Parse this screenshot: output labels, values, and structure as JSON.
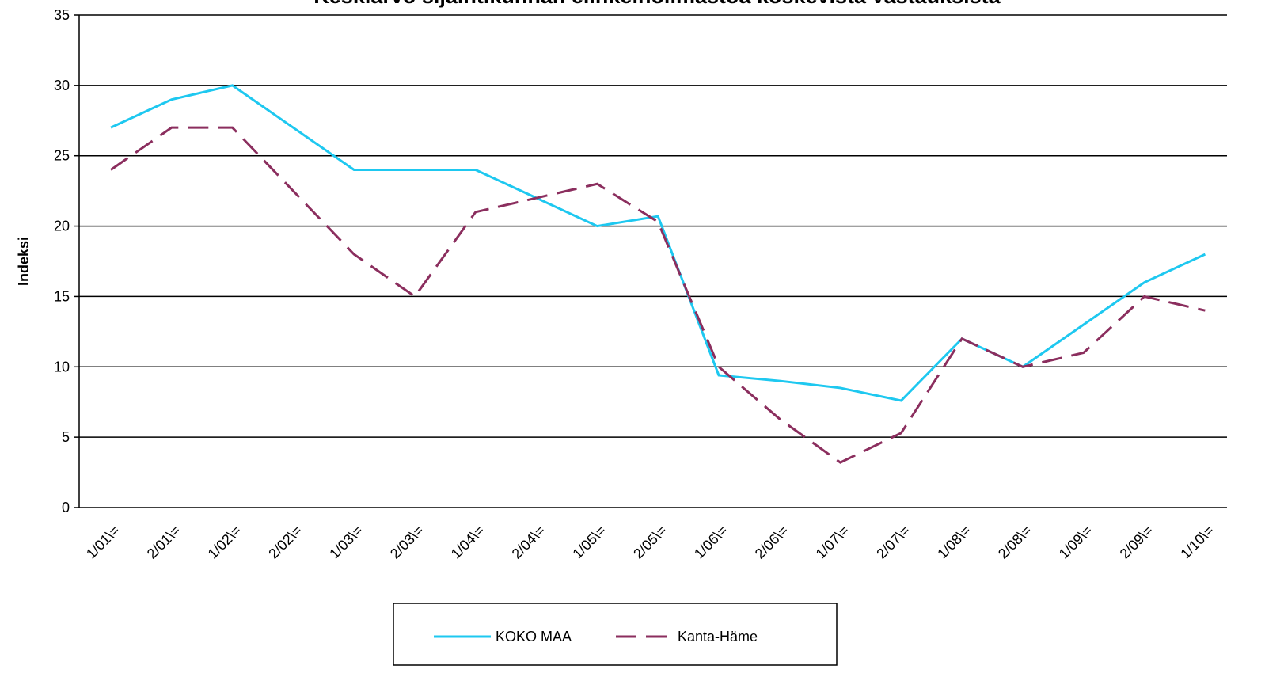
{
  "chart_data": {
    "type": "line",
    "title": "Keskiarvo sijaintikunnan elinkeinoilmastoa koskevista vastauksista",
    "ylabel": "Indeksi",
    "categories": [
      "1/01\\=",
      "2/01\\=",
      "1/02\\=",
      "2/02\\=",
      "1/03\\=",
      "2/03\\=",
      "1/04\\=",
      "2/04\\=",
      "1/05\\=",
      "2/05\\=",
      "1/06\\=",
      "2/06\\=",
      "1/07\\=",
      "2/07\\=",
      "1/08\\=",
      "2/08\\=",
      "1/09\\=",
      "2/09\\=",
      "1/10\\="
    ],
    "series": [
      {
        "name": "KOKO MAA",
        "color": "#1ec8f0",
        "dash": false,
        "values": [
          27,
          29,
          30,
          27,
          24,
          24,
          24,
          22,
          20,
          20.7,
          9.4,
          9,
          8.5,
          7.6,
          12,
          10,
          13,
          16,
          18
        ]
      },
      {
        "name": "Kanta-Häme",
        "color": "#8b2e5e",
        "dash": true,
        "values": [
          24,
          27,
          27,
          22.5,
          18,
          15,
          21,
          22,
          23,
          20.3,
          10,
          6.3,
          3.2,
          5.3,
          12,
          10,
          11,
          15,
          14
        ]
      }
    ],
    "ylim": [
      0,
      35
    ],
    "yticks": [
      0,
      5,
      10,
      15,
      20,
      25,
      30,
      35
    ],
    "grid": true
  }
}
